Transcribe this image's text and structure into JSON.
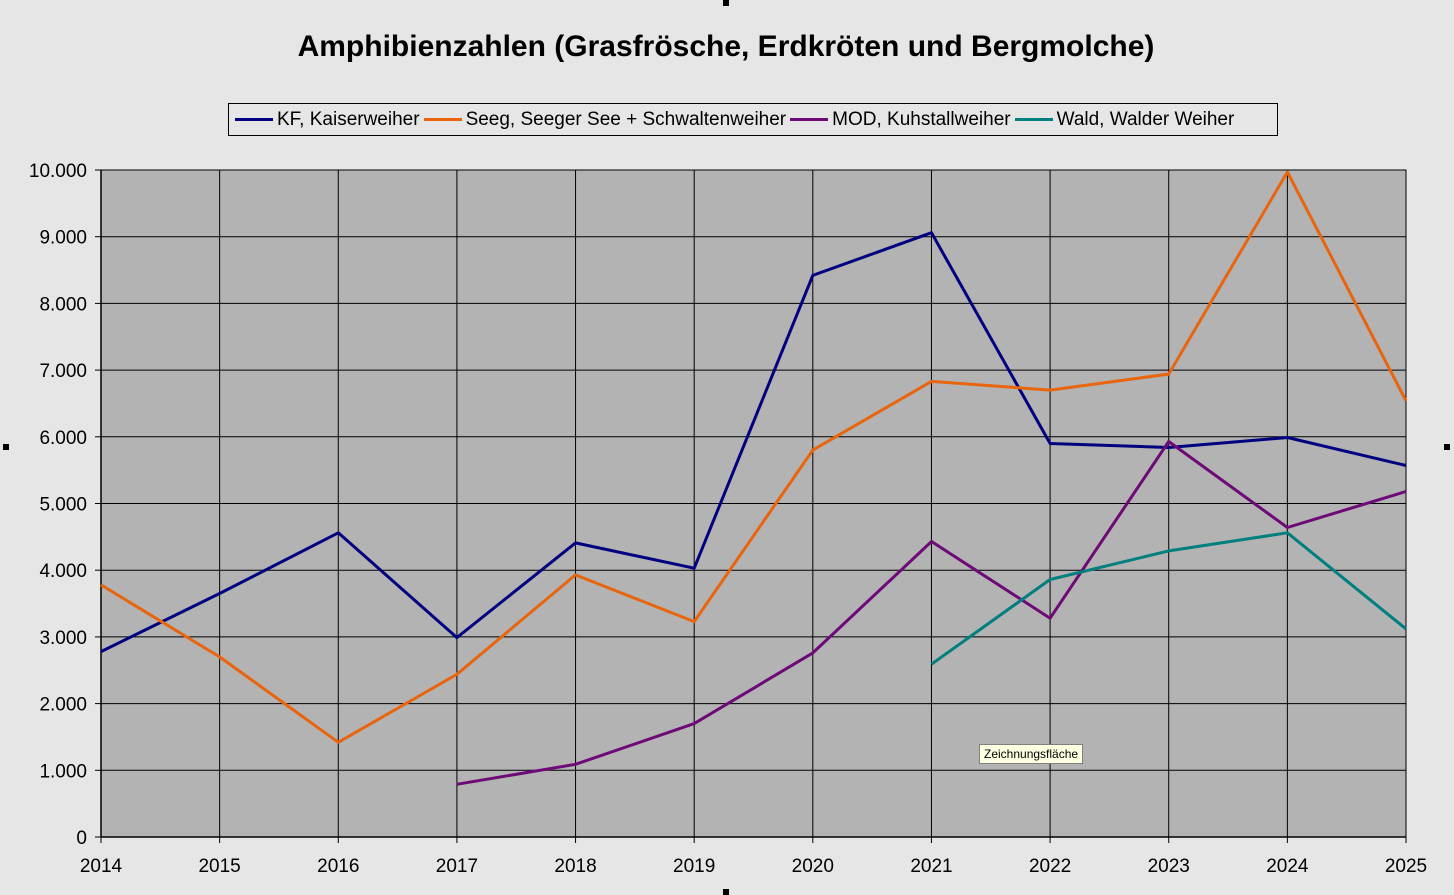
{
  "chart_data": {
    "type": "line",
    "title": "Amphibienzahlen (Grasfrösche, Erdkröten und Bergmolche)",
    "x": [
      "2014",
      "2015",
      "2016",
      "2017",
      "2018",
      "2019",
      "2020",
      "2021",
      "2022",
      "2023",
      "2024",
      "2025"
    ],
    "ylim": [
      0,
      10000
    ],
    "yticks": [
      0,
      1000,
      2000,
      3000,
      4000,
      5000,
      6000,
      7000,
      8000,
      9000,
      10000
    ],
    "ytick_labels": [
      "0",
      "1.000",
      "2.000",
      "3.000",
      "4.000",
      "5.000",
      "6.000",
      "7.000",
      "8.000",
      "9.000",
      "10.000"
    ],
    "grid": true,
    "legend_position": "top",
    "plot_background": "#b3b3b3",
    "series": [
      {
        "name": "KF, Kaiserweiher",
        "color": "#000080",
        "values": [
          2780,
          3650,
          4560,
          2990,
          4410,
          4030,
          8420,
          9060,
          5900,
          5840,
          5990,
          5570
        ]
      },
      {
        "name": "Seeg, Seeger See + Schwaltenweiher",
        "color": "#e8650e",
        "values": [
          3780,
          2700,
          1420,
          2440,
          3930,
          3230,
          5800,
          6830,
          6700,
          6940,
          9970,
          6540
        ]
      },
      {
        "name": "MOD, Kuhstallweiher",
        "color": "#6e0a78",
        "values": [
          null,
          null,
          null,
          790,
          1090,
          1700,
          2760,
          4430,
          3280,
          5930,
          4640,
          5180
        ]
      },
      {
        "name": "Wald, Walder Weiher",
        "color": "#007f7f",
        "values": [
          null,
          null,
          null,
          null,
          null,
          null,
          null,
          2590,
          3860,
          4290,
          4560,
          3120
        ]
      }
    ]
  },
  "tooltip": {
    "text": "Zeichnungsfläche"
  }
}
